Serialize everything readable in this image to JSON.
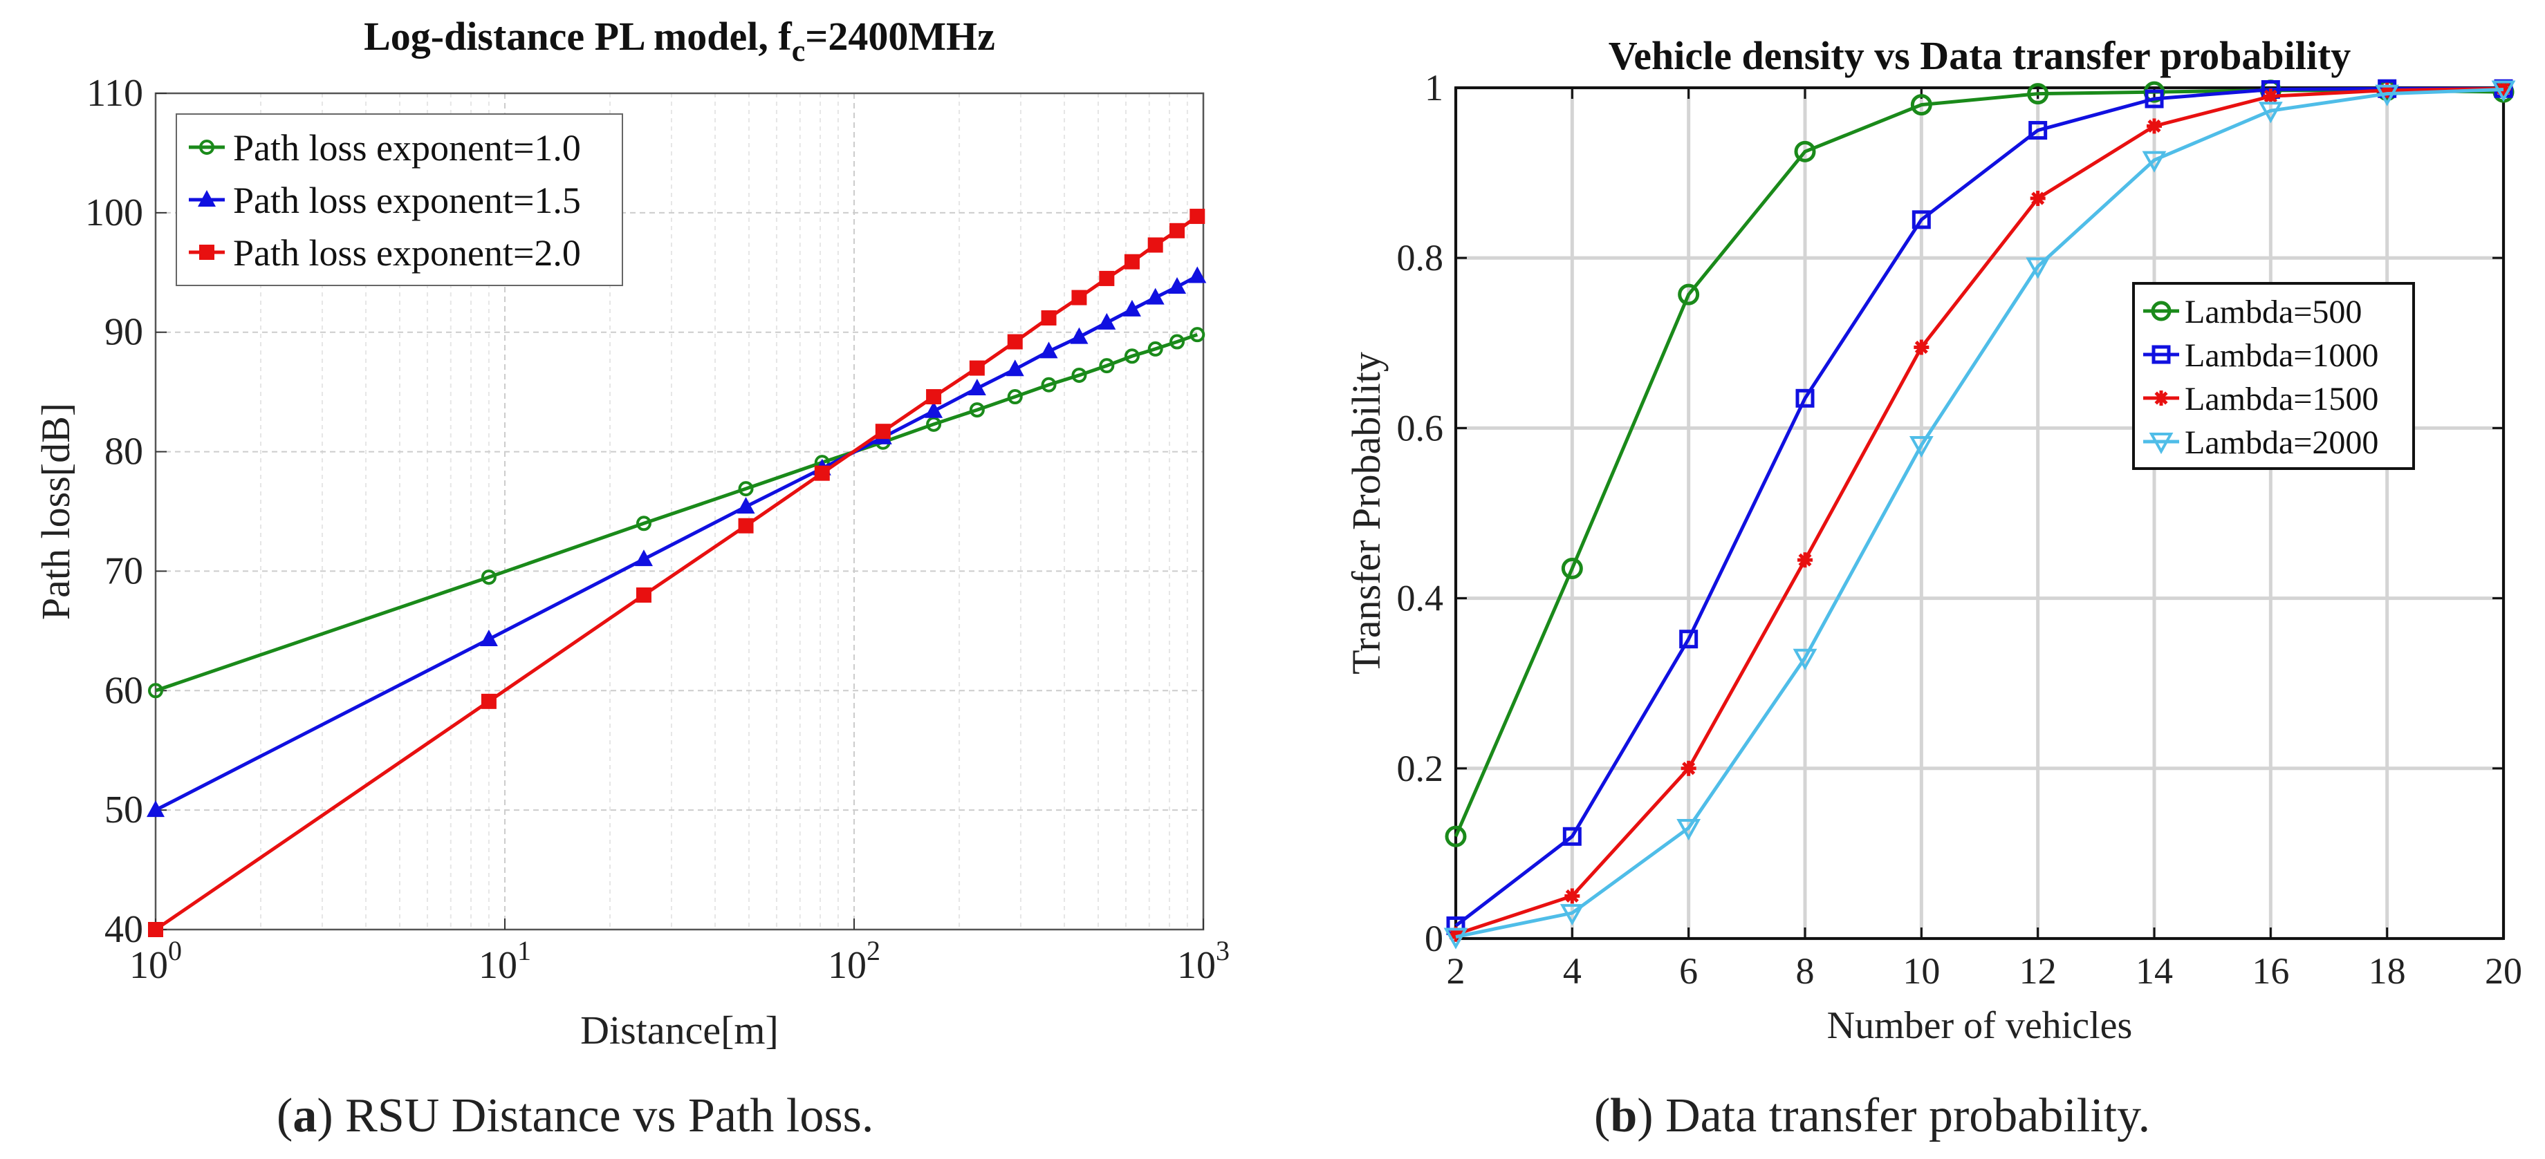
{
  "chart_data": [
    {
      "type": "line",
      "title": "Log-distance PL model, ",
      "title_sub": "c",
      "title_tail": "=2400MHz",
      "title_f": "f",
      "xlabel": "Distance[m]",
      "ylabel": "Path loss[dB]",
      "xscale": "log",
      "xlim": [
        1,
        1000
      ],
      "ylim": [
        40,
        110
      ],
      "yticks": [
        40,
        50,
        60,
        70,
        80,
        90,
        100,
        110
      ],
      "xticks": [
        {
          "value": 1,
          "base": "10",
          "exp": "0"
        },
        {
          "value": 10,
          "base": "10",
          "exp": "1"
        },
        {
          "value": 100,
          "base": "10",
          "exp": "2"
        },
        {
          "value": 1000,
          "base": "10",
          "exp": "3"
        }
      ],
      "grid": true,
      "legend_position": "top-left",
      "x": [
        1,
        9,
        25,
        49,
        81,
        121,
        169,
        225,
        289,
        361,
        441,
        529,
        625,
        729,
        841,
        961
      ],
      "series": [
        {
          "name": "Path loss exponent=1.0",
          "color": "#1a8a1a",
          "marker": "circle",
          "values": [
            60.0,
            69.5,
            74.0,
            76.9,
            79.1,
            80.8,
            82.3,
            83.5,
            84.6,
            85.6,
            86.4,
            87.2,
            88.0,
            88.6,
            89.2,
            89.8
          ]
        },
        {
          "name": "Path loss exponent=1.5",
          "color": "#1010e0",
          "marker": "triangle",
          "values": [
            50.0,
            64.3,
            71.0,
            75.4,
            78.6,
            81.2,
            83.4,
            85.3,
            86.9,
            88.4,
            89.6,
            90.8,
            91.9,
            92.9,
            93.8,
            94.7
          ]
        },
        {
          "name": "Path loss exponent=2.0",
          "color": "#e81010",
          "marker": "square",
          "values": [
            40.0,
            59.1,
            68.0,
            73.8,
            78.2,
            81.7,
            84.6,
            87.0,
            89.2,
            91.2,
            92.9,
            94.5,
            95.9,
            97.3,
            98.5,
            99.7
          ]
        }
      ]
    },
    {
      "type": "line",
      "title": "Vehicle density vs Data transfer probability",
      "xlabel": "Number of vehicles",
      "ylabel": "Transfer Probability",
      "xlim": [
        2,
        20
      ],
      "ylim": [
        0,
        1
      ],
      "xticks": [
        2,
        4,
        6,
        8,
        10,
        12,
        14,
        16,
        18,
        20
      ],
      "yticks": [
        0,
        0.2,
        0.4,
        0.6,
        0.8,
        1
      ],
      "ytick_labels": [
        "0",
        "0.2",
        "0.4",
        "0.6",
        "0.8",
        "1"
      ],
      "grid": true,
      "legend_position": "center-right",
      "x": [
        2,
        4,
        6,
        8,
        10,
        12,
        14,
        16,
        18,
        20
      ],
      "series": [
        {
          "name": "Lambda=500",
          "color": "#1a8a1a",
          "marker": "circle",
          "values": [
            0.12,
            0.435,
            0.757,
            0.925,
            0.98,
            0.993,
            0.995,
            0.997,
            0.997,
            0.995
          ]
        },
        {
          "name": "Lambda=1000",
          "color": "#1010e0",
          "marker": "square",
          "values": [
            0.015,
            0.12,
            0.352,
            0.635,
            0.845,
            0.95,
            0.987,
            0.998,
            0.999,
            0.999
          ]
        },
        {
          "name": "Lambda=1500",
          "color": "#e81010",
          "marker": "asterisk",
          "values": [
            0.005,
            0.05,
            0.2,
            0.445,
            0.695,
            0.87,
            0.955,
            0.99,
            0.997,
            0.999
          ]
        },
        {
          "name": "Lambda=2000",
          "color": "#4fbde8",
          "marker": "triangle-down",
          "values": [
            0.002,
            0.03,
            0.13,
            0.33,
            0.58,
            0.79,
            0.915,
            0.973,
            0.993,
            0.998
          ]
        }
      ]
    }
  ],
  "captions": [
    {
      "letter": "a",
      "text": " RSU Distance vs Path loss."
    },
    {
      "letter": "b",
      "text": " Data transfer probability."
    }
  ]
}
